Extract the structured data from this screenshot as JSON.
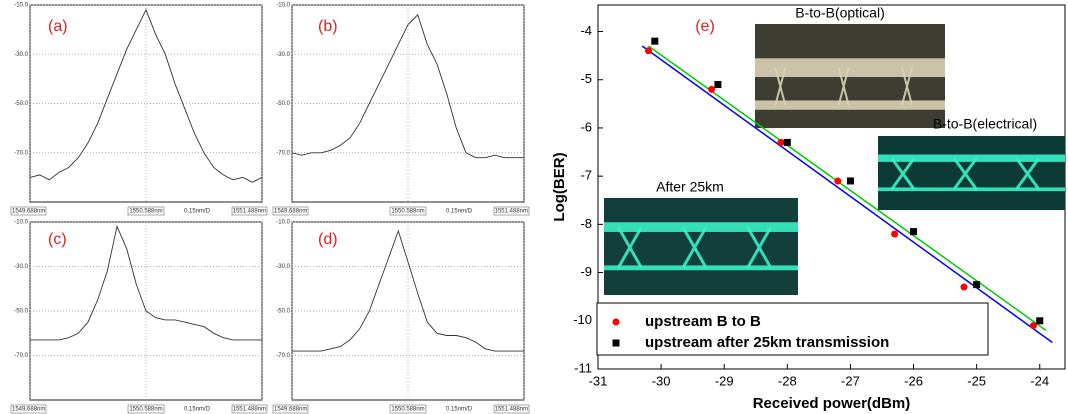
{
  "chart_data": [
    {
      "type": "line",
      "label": "(a)",
      "color": "#333333",
      "x": [
        1549.688,
        1549.763,
        1549.838,
        1549.913,
        1549.988,
        1550.063,
        1550.138,
        1550.213,
        1550.288,
        1550.363,
        1550.438,
        1550.513,
        1550.588,
        1550.663,
        1550.738,
        1550.813,
        1550.888,
        1550.963,
        1551.038,
        1551.113,
        1551.188,
        1551.263,
        1551.338,
        1551.413,
        1551.488
      ],
      "values": [
        -80,
        -79,
        -81,
        -78,
        -76,
        -72,
        -66,
        -58,
        -48,
        -38,
        -28,
        -20,
        -12,
        -22,
        -30,
        -42,
        -52,
        -62,
        -70,
        -76,
        -79,
        -81,
        -80,
        -82,
        -80
      ],
      "xlim": [
        1549.688,
        1551.488
      ],
      "xticks": [
        {
          "value": 1549.688,
          "label": "1549.688nm"
        },
        {
          "value": 1550.588,
          "label": "1550.588nm"
        },
        {
          "value": 1551.488,
          "label": "1551.488nm"
        }
      ],
      "span_label": "0.15nm/D",
      "ylim": [
        -90,
        -10
      ],
      "yticks": [
        {
          "value": -10,
          "label": "-10.0"
        },
        {
          "value": -30,
          "label": "-30.0"
        },
        {
          "value": -50,
          "label": "-50.0"
        },
        {
          "value": -70,
          "label": "-70.0"
        }
      ]
    },
    {
      "type": "line",
      "label": "(b)",
      "color": "#333333",
      "x": [
        1549.688,
        1549.763,
        1549.838,
        1549.913,
        1549.988,
        1550.063,
        1550.138,
        1550.213,
        1550.288,
        1550.363,
        1550.438,
        1550.513,
        1550.588,
        1550.663,
        1550.738,
        1550.813,
        1550.888,
        1550.963,
        1551.038,
        1551.113,
        1551.188,
        1551.263,
        1551.338,
        1551.413,
        1551.488
      ],
      "values": [
        -70,
        -71,
        -70,
        -70,
        -69,
        -67,
        -64,
        -58,
        -50,
        -42,
        -34,
        -26,
        -18,
        -14,
        -26,
        -34,
        -46,
        -60,
        -70,
        -72,
        -72,
        -71,
        -72,
        -72,
        -72
      ],
      "xlim": [
        1549.688,
        1551.488
      ],
      "xticks": [
        {
          "value": 1549.688,
          "label": "1549.688nm"
        },
        {
          "value": 1550.588,
          "label": "1550.588nm"
        },
        {
          "value": 1551.488,
          "label": "1551.488nm"
        }
      ],
      "span_label": "0.15nm/D",
      "ylim": [
        -90,
        -10
      ],
      "yticks": [
        {
          "value": -10,
          "label": "-10.0"
        },
        {
          "value": -30,
          "label": "-30.0"
        },
        {
          "value": -50,
          "label": "-50.0"
        },
        {
          "value": -70,
          "label": "-70.0"
        }
      ]
    },
    {
      "type": "line",
      "label": "(c)",
      "color": "#333333",
      "x": [
        1549.688,
        1549.763,
        1549.838,
        1549.913,
        1549.988,
        1550.063,
        1550.138,
        1550.213,
        1550.288,
        1550.363,
        1550.438,
        1550.513,
        1550.588,
        1550.663,
        1550.738,
        1550.813,
        1550.888,
        1550.963,
        1551.038,
        1551.113,
        1551.188,
        1551.263,
        1551.338,
        1551.413,
        1551.488
      ],
      "values": [
        -63,
        -63,
        -63,
        -63,
        -62,
        -60,
        -55,
        -45,
        -32,
        -12,
        -22,
        -38,
        -50,
        -53,
        -54,
        -54,
        -55,
        -56,
        -57,
        -60,
        -62,
        -63,
        -63,
        -63,
        -63
      ],
      "xlim": [
        1549.688,
        1551.488
      ],
      "xticks": [
        {
          "value": 1549.688,
          "label": "1549.688nm"
        },
        {
          "value": 1550.588,
          "label": "1550.588nm"
        },
        {
          "value": 1551.488,
          "label": "1551.488nm"
        }
      ],
      "span_label": "0.15nm/D",
      "ylim": [
        -90,
        -10
      ],
      "yticks": [
        {
          "value": -10,
          "label": "-10.0"
        },
        {
          "value": -30,
          "label": "-30.0"
        },
        {
          "value": -50,
          "label": "-50.0"
        },
        {
          "value": -70,
          "label": "-70.0"
        }
      ]
    },
    {
      "type": "line",
      "label": "(d)",
      "color": "#333333",
      "x": [
        1549.688,
        1549.763,
        1549.838,
        1549.913,
        1549.988,
        1550.063,
        1550.138,
        1550.213,
        1550.288,
        1550.363,
        1550.438,
        1550.513,
        1550.588,
        1550.663,
        1550.738,
        1550.813,
        1550.888,
        1550.963,
        1551.038,
        1551.113,
        1551.188,
        1551.263,
        1551.338,
        1551.413,
        1551.488
      ],
      "values": [
        -68,
        -68,
        -68,
        -68,
        -67,
        -66,
        -63,
        -58,
        -50,
        -38,
        -26,
        -14,
        -28,
        -42,
        -55,
        -60,
        -61,
        -61,
        -62,
        -64,
        -67,
        -68,
        -68,
        -68,
        -68
      ],
      "xlim": [
        1549.688,
        1551.488
      ],
      "xticks": [
        {
          "value": 1549.688,
          "label": "1549.688nm"
        },
        {
          "value": 1550.588,
          "label": "1550.588nm"
        },
        {
          "value": 1551.488,
          "label": "1551.488nm"
        }
      ],
      "span_label": "0.15nm/D",
      "ylim": [
        -90,
        -10
      ],
      "yticks": [
        {
          "value": -10,
          "label": "-10.0"
        },
        {
          "value": -30,
          "label": "-30.0"
        },
        {
          "value": -50,
          "label": "-50.0"
        },
        {
          "value": -70,
          "label": "-70.0"
        }
      ]
    },
    {
      "type": "scatter",
      "label": "(e)",
      "xlabel": "Received power(dBm)",
      "ylabel": "Log(BER)",
      "xlim": [
        -31,
        -23.6
      ],
      "xticks": [
        -31,
        -30,
        -29,
        -28,
        -27,
        -26,
        -25,
        -24
      ],
      "ylim": [
        -11,
        -3.45
      ],
      "yticks": [
        -11,
        -10,
        -9,
        -8,
        -7,
        -6,
        -5,
        -4
      ],
      "series": [
        {
          "name": "upstream B to B",
          "color": "#ff0000",
          "marker": "circle",
          "x": [
            -30.2,
            -29.2,
            -28.1,
            -27.2,
            -26.3,
            -25.2,
            -24.1
          ],
          "values": [
            -4.4,
            -5.2,
            -6.3,
            -7.1,
            -8.2,
            -9.3,
            -10.1
          ]
        },
        {
          "name": "upstream after 25km transmission",
          "color": "#000000",
          "marker": "square",
          "x": [
            -30.1,
            -29.1,
            -28.0,
            -27.0,
            -26.0,
            -25.0,
            -24.0
          ],
          "values": [
            -4.2,
            -5.1,
            -6.3,
            -7.1,
            -8.15,
            -9.25,
            -10.0
          ]
        }
      ],
      "fit_lines": [
        {
          "color": "#0000ff",
          "x": [
            -30.3,
            -23.8
          ],
          "values": [
            -4.3,
            -10.45
          ]
        },
        {
          "color": "#00cc00",
          "x": [
            -30.2,
            -23.9
          ],
          "values": [
            -4.3,
            -10.2
          ]
        }
      ],
      "annotations": [
        "B-to-B(optical)",
        "B-to-B(electrical)",
        "After 25km"
      ]
    }
  ]
}
